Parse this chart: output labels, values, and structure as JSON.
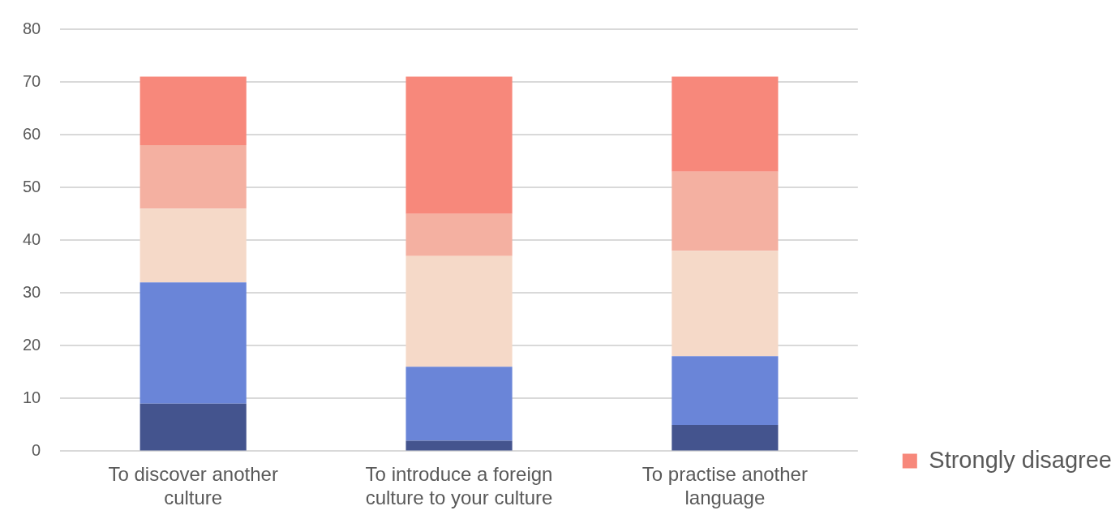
{
  "chart_data": {
    "type": "bar",
    "stacked": true,
    "categories": [
      "To discover another culture",
      "To introduce a foreign culture to your culture",
      "To practise another language"
    ],
    "series": [
      {
        "color": "#44548e",
        "values": [
          9,
          2,
          5
        ]
      },
      {
        "color": "#6a85d8",
        "values": [
          23,
          14,
          13
        ]
      },
      {
        "color": "#f5d9c8",
        "values": [
          14,
          21,
          20
        ]
      },
      {
        "color": "#f4b0a1",
        "values": [
          12,
          8,
          15
        ]
      },
      {
        "name": "Strongly disagree",
        "color": "#f7887b",
        "values": [
          13,
          26,
          18
        ]
      }
    ],
    "ylim": [
      0,
      80
    ],
    "yticks": [
      0,
      10,
      20,
      30,
      40,
      50,
      60,
      70,
      80
    ],
    "grid": "y",
    "legend": "bottom right"
  }
}
